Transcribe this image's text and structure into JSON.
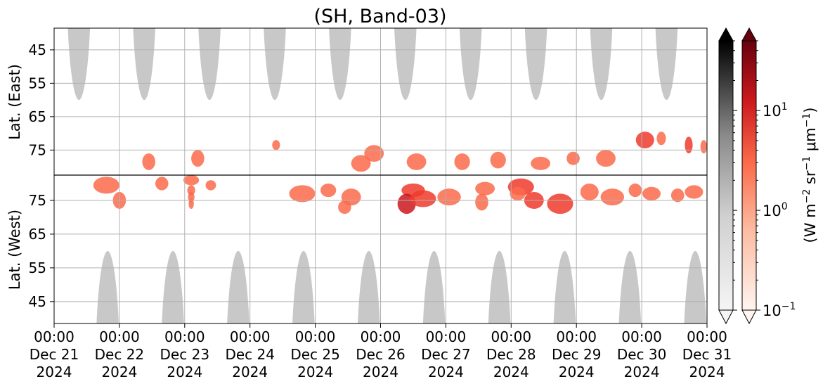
{
  "chart_data": {
    "type": "heatmap",
    "title": "(SH, Band-03)",
    "panels": [
      {
        "name": "east",
        "ylabel": "Lat. (East)",
        "y_direction": "increasing-downward",
        "ylim": [
          38.5,
          82.5
        ],
        "yticks": [
          45,
          55,
          65,
          75
        ],
        "ytick_labels": [
          "45",
          "55",
          "65",
          "75"
        ],
        "daylight_masks": [
          {
            "center_day": 0.38,
            "half_width_at_top": 0.17,
            "bottom_lat": 60
          },
          {
            "center_day": 1.38,
            "half_width_at_top": 0.17,
            "bottom_lat": 60
          },
          {
            "center_day": 2.38,
            "half_width_at_top": 0.17,
            "bottom_lat": 60
          },
          {
            "center_day": 3.38,
            "half_width_at_top": 0.17,
            "bottom_lat": 60
          },
          {
            "center_day": 4.38,
            "half_width_at_top": 0.17,
            "bottom_lat": 60
          },
          {
            "center_day": 5.38,
            "half_width_at_top": 0.17,
            "bottom_lat": 60
          },
          {
            "center_day": 6.38,
            "half_width_at_top": 0.17,
            "bottom_lat": 60
          },
          {
            "center_day": 7.38,
            "half_width_at_top": 0.17,
            "bottom_lat": 60
          },
          {
            "center_day": 8.38,
            "half_width_at_top": 0.17,
            "bottom_lat": 60
          },
          {
            "center_day": 9.38,
            "half_width_at_top": 0.17,
            "bottom_lat": 60
          }
        ],
        "emission_blobs": [
          {
            "day": 1.45,
            "lat": 78.5,
            "dday": 0.1,
            "dlat": 2.5,
            "value": 3
          },
          {
            "day": 2.2,
            "lat": 77.5,
            "dday": 0.1,
            "dlat": 2.5,
            "value": 3
          },
          {
            "day": 3.4,
            "lat": 73.5,
            "dday": 0.06,
            "dlat": 1.5,
            "value": 2
          },
          {
            "day": 4.7,
            "lat": 79.0,
            "dday": 0.15,
            "dlat": 2.5,
            "value": 2
          },
          {
            "day": 4.9,
            "lat": 76.0,
            "dday": 0.15,
            "dlat": 2.5,
            "value": 3
          },
          {
            "day": 5.55,
            "lat": 78.5,
            "dday": 0.15,
            "dlat": 2.5,
            "value": 2
          },
          {
            "day": 6.25,
            "lat": 78.5,
            "dday": 0.12,
            "dlat": 2.5,
            "value": 2
          },
          {
            "day": 6.8,
            "lat": 78.0,
            "dday": 0.12,
            "dlat": 2.5,
            "value": 3
          },
          {
            "day": 7.45,
            "lat": 79.0,
            "dday": 0.15,
            "dlat": 2.0,
            "value": 2
          },
          {
            "day": 7.95,
            "lat": 77.5,
            "dday": 0.1,
            "dlat": 2.0,
            "value": 3
          },
          {
            "day": 8.45,
            "lat": 77.5,
            "dday": 0.15,
            "dlat": 2.5,
            "value": 2
          },
          {
            "day": 9.05,
            "lat": 72.0,
            "dday": 0.14,
            "dlat": 2.5,
            "value": 6
          },
          {
            "day": 9.3,
            "lat": 71.5,
            "dday": 0.07,
            "dlat": 2.0,
            "value": 3
          },
          {
            "day": 9.72,
            "lat": 73.5,
            "dday": 0.06,
            "dlat": 2.5,
            "value": 4
          },
          {
            "day": 9.95,
            "lat": 74.0,
            "dday": 0.05,
            "dlat": 2.0,
            "value": 2
          }
        ]
      },
      {
        "name": "west",
        "ylabel": "Lat. (West)",
        "y_direction": "decreasing-downward",
        "ylim": [
          82.5,
          38.5
        ],
        "yticks": [
          75,
          65,
          55,
          45
        ],
        "ytick_labels": [
          "75",
          "65",
          "55",
          "45"
        ],
        "daylight_masks": [
          {
            "center_day": 0.82,
            "half_width_at_bottom": 0.17,
            "top_lat": 60
          },
          {
            "center_day": 1.82,
            "half_width_at_bottom": 0.17,
            "top_lat": 60
          },
          {
            "center_day": 2.82,
            "half_width_at_bottom": 0.17,
            "top_lat": 60
          },
          {
            "center_day": 3.82,
            "half_width_at_bottom": 0.17,
            "top_lat": 60
          },
          {
            "center_day": 4.82,
            "half_width_at_bottom": 0.17,
            "top_lat": 60
          },
          {
            "center_day": 5.82,
            "half_width_at_bottom": 0.17,
            "top_lat": 60
          },
          {
            "center_day": 6.82,
            "half_width_at_bottom": 0.17,
            "top_lat": 60
          },
          {
            "center_day": 7.82,
            "half_width_at_bottom": 0.17,
            "top_lat": 60
          },
          {
            "center_day": 8.82,
            "half_width_at_bottom": 0.17,
            "top_lat": 60
          },
          {
            "center_day": 9.82,
            "half_width_at_bottom": 0.17,
            "top_lat": 60
          }
        ],
        "emission_blobs": [
          {
            "day": 0.8,
            "lat": 79.5,
            "dday": 0.2,
            "dlat": 2.5,
            "value": 2
          },
          {
            "day": 1.0,
            "lat": 75.0,
            "dday": 0.1,
            "dlat": 2.5,
            "value": 3
          },
          {
            "day": 1.65,
            "lat": 80.0,
            "dday": 0.1,
            "dlat": 2.0,
            "value": 2
          },
          {
            "day": 2.1,
            "lat": 81.0,
            "dday": 0.12,
            "dlat": 1.5,
            "value": 2
          },
          {
            "day": 2.4,
            "lat": 79.5,
            "dday": 0.08,
            "dlat": 1.5,
            "value": 2
          },
          {
            "day": 2.1,
            "lat": 78.0,
            "dday": 0.06,
            "dlat": 1.5,
            "value": 2
          },
          {
            "day": 2.1,
            "lat": 76.0,
            "dday": 0.05,
            "dlat": 1.5,
            "value": 3
          },
          {
            "day": 2.1,
            "lat": 74.0,
            "dday": 0.04,
            "dlat": 1.5,
            "value": 2
          },
          {
            "day": 3.8,
            "lat": 77.0,
            "dday": 0.2,
            "dlat": 2.5,
            "value": 2
          },
          {
            "day": 4.2,
            "lat": 78.0,
            "dday": 0.12,
            "dlat": 2.0,
            "value": 2
          },
          {
            "day": 4.55,
            "lat": 76.0,
            "dday": 0.15,
            "dlat": 2.5,
            "value": 2
          },
          {
            "day": 4.45,
            "lat": 73.0,
            "dday": 0.1,
            "dlat": 2.0,
            "value": 2
          },
          {
            "day": 5.5,
            "lat": 78.0,
            "dday": 0.18,
            "dlat": 2.0,
            "value": 4
          },
          {
            "day": 5.4,
            "lat": 74.0,
            "dday": 0.14,
            "dlat": 3.0,
            "value": 8
          },
          {
            "day": 5.65,
            "lat": 75.5,
            "dday": 0.2,
            "dlat": 2.5,
            "value": 4
          },
          {
            "day": 6.05,
            "lat": 76.0,
            "dday": 0.18,
            "dlat": 2.5,
            "value": 3
          },
          {
            "day": 6.55,
            "lat": 74.5,
            "dday": 0.1,
            "dlat": 2.5,
            "value": 3
          },
          {
            "day": 6.6,
            "lat": 78.5,
            "dday": 0.15,
            "dlat": 2.0,
            "value": 2
          },
          {
            "day": 7.15,
            "lat": 79.0,
            "dday": 0.2,
            "dlat": 2.5,
            "value": 4
          },
          {
            "day": 7.1,
            "lat": 77.0,
            "dday": 0.12,
            "dlat": 2.0,
            "value": 3
          },
          {
            "day": 7.35,
            "lat": 75.0,
            "dday": 0.15,
            "dlat": 2.5,
            "value": 5
          },
          {
            "day": 7.75,
            "lat": 74.0,
            "dday": 0.2,
            "dlat": 3.0,
            "value": 7
          },
          {
            "day": 8.2,
            "lat": 77.5,
            "dday": 0.14,
            "dlat": 2.5,
            "value": 3
          },
          {
            "day": 8.55,
            "lat": 76.0,
            "dday": 0.18,
            "dlat": 2.5,
            "value": 3
          },
          {
            "day": 8.9,
            "lat": 78.0,
            "dday": 0.1,
            "dlat": 2.0,
            "value": 2
          },
          {
            "day": 9.15,
            "lat": 77.0,
            "dday": 0.14,
            "dlat": 2.0,
            "value": 2
          },
          {
            "day": 9.55,
            "lat": 76.5,
            "dday": 0.1,
            "dlat": 2.0,
            "value": 2
          },
          {
            "day": 9.8,
            "lat": 77.5,
            "dday": 0.14,
            "dlat": 2.0,
            "value": 2
          }
        ]
      }
    ],
    "x": {
      "range_days": [
        0,
        10
      ],
      "ticks": [
        {
          "time": "00:00",
          "date": "Dec 21",
          "year": "2024"
        },
        {
          "time": "00:00",
          "date": "Dec 22",
          "year": "2024"
        },
        {
          "time": "00:00",
          "date": "Dec 23",
          "year": "2024"
        },
        {
          "time": "00:00",
          "date": "Dec 24",
          "year": "2024"
        },
        {
          "time": "00:00",
          "date": "Dec 25",
          "year": "2024"
        },
        {
          "time": "00:00",
          "date": "Dec 26",
          "year": "2024"
        },
        {
          "time": "00:00",
          "date": "Dec 27",
          "year": "2024"
        },
        {
          "time": "00:00",
          "date": "Dec 28",
          "year": "2024"
        },
        {
          "time": "00:00",
          "date": "Dec 29",
          "year": "2024"
        },
        {
          "time": "00:00",
          "date": "Dec 30",
          "year": "2024"
        },
        {
          "time": "00:00",
          "date": "Dec 31",
          "year": "2024"
        }
      ]
    },
    "grid": true,
    "colorbars": [
      {
        "name": "grey",
        "scale": "log",
        "range": [
          0.1,
          50
        ],
        "extend": "both",
        "colors": [
          "#f4f4f4",
          "#000000"
        ]
      },
      {
        "name": "reds",
        "scale": "log",
        "range": [
          0.1,
          50
        ],
        "extend": "both",
        "colors": [
          "#fff5f0",
          "#67000d"
        ],
        "ticks": [
          {
            "base": "10",
            "exp": "1",
            "value": 10
          },
          {
            "base": "10",
            "exp": "0",
            "value": 1
          },
          {
            "base": "10",
            "exp": "−1",
            "value": 0.1
          }
        ],
        "label_parts": {
          "a": "(W m",
          "a_sup": "−2",
          "b": " sr",
          "b_sup": "−1",
          "c": " μm",
          "c_sup": "−1",
          "d": ")"
        }
      }
    ],
    "colors": {
      "daylight_mask": "#c8c8c8",
      "grid": "#b0b0b0",
      "divider": "#000000"
    }
  }
}
